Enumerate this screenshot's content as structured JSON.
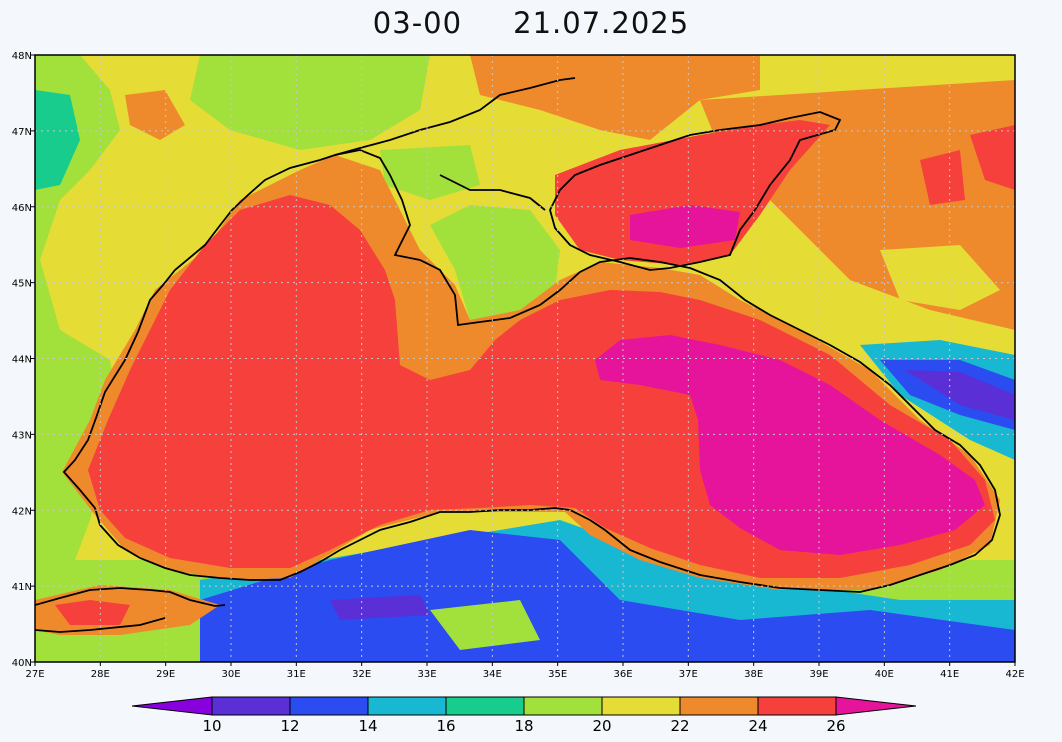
{
  "title": "03-00     21.07.2025",
  "map": {
    "region": "Black Sea",
    "lon_range": [
      27,
      42
    ],
    "lat_range": [
      40,
      48
    ],
    "x_ticks": [
      "27E",
      "28E",
      "29E",
      "30E",
      "31E",
      "32E",
      "33E",
      "34E",
      "35E",
      "36E",
      "37E",
      "38E",
      "39E",
      "40E",
      "41E",
      "42E"
    ],
    "y_ticks": [
      "40N",
      "41N",
      "42N",
      "43N",
      "44N",
      "45N",
      "46N",
      "47N",
      "48N"
    ],
    "grid": true
  },
  "colorbar": {
    "labels": [
      "10",
      "12",
      "14",
      "16",
      "18",
      "20",
      "22",
      "24",
      "26"
    ],
    "colors": [
      "#8800dd",
      "#5b2fd6",
      "#2a4cf0",
      "#18b8d2",
      "#17cc8c",
      "#a2e03c",
      "#e6dc36",
      "#ef8a2c",
      "#f6403c",
      "#e6149b"
    ]
  },
  "palette": {
    "sea_hot": "#f6403c",
    "sea_hottest": "#e6149b",
    "warm": "#ef8a2c",
    "mild": "#e6dc36",
    "cool": "#a2e03c",
    "cold": "#17cc8c",
    "teal": "#18b8d2",
    "blue": "#2a4cf0",
    "violet": "#5b2fd6"
  }
}
